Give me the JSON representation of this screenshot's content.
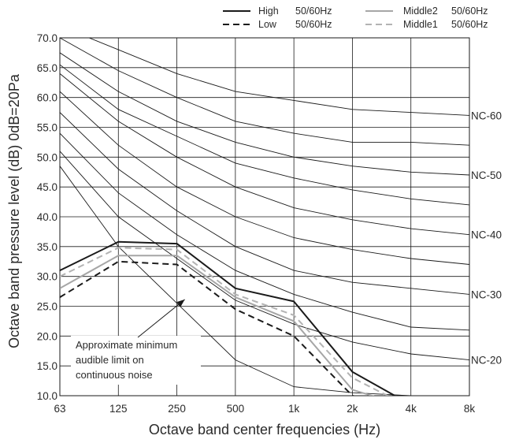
{
  "chart_data": {
    "type": "line",
    "xlabel": "Octave band center frequencies (Hz)",
    "ylabel": "Octave band pressure level (dB) 0dB=20Pa",
    "ylim": [
      10,
      70
    ],
    "grid": true,
    "legend_position": "top",
    "categories": [
      "63",
      "125",
      "250",
      "500",
      "1k",
      "2k",
      "4k",
      "8k"
    ],
    "y_ticks": [
      "10.0",
      "15.0",
      "20.0",
      "25.0",
      "30.0",
      "35.0",
      "40.0",
      "45.0",
      "50.0",
      "55.0",
      "60.0",
      "65.0",
      "70.0"
    ],
    "series": [
      {
        "name": "High",
        "hz_label": "50/60Hz",
        "color": "#1a1a1a",
        "dash": "solid",
        "values": [
          31,
          35.8,
          35.5,
          28,
          25.8,
          14,
          8.5,
          null
        ]
      },
      {
        "name": "Low",
        "hz_label": "50/60Hz",
        "color": "#1a1a1a",
        "dash": "dashed",
        "values": [
          26.5,
          32.5,
          32,
          24.5,
          20,
          10,
          8,
          null
        ]
      },
      {
        "name": "Middle2",
        "hz_label": "50/60Hz",
        "color": "#a6a6a6",
        "dash": "solid",
        "values": [
          28,
          33.5,
          33.5,
          26.5,
          22.5,
          11,
          8,
          null
        ]
      },
      {
        "name": "Middle1",
        "hz_label": "50/60Hz",
        "color": "#b3b3b3",
        "dash": "dashed",
        "values": [
          30,
          34.8,
          34.5,
          27,
          23.5,
          13,
          8,
          null
        ]
      }
    ],
    "nc_curves": [
      {
        "label": "",
        "values": [
          48.5,
          35,
          25.5,
          16,
          11.5,
          10.5,
          10,
          9.5
        ]
      },
      {
        "label": "NC-20",
        "values": [
          51,
          40,
          33,
          26,
          22,
          19,
          17,
          16
        ]
      },
      {
        "label": "",
        "values": [
          54,
          44,
          37,
          31,
          27,
          24,
          21.5,
          21
        ]
      },
      {
        "label": "NC-30",
        "values": [
          57.5,
          48,
          41,
          35,
          31,
          29,
          28,
          27
        ]
      },
      {
        "label": "",
        "values": [
          61,
          52,
          45,
          40,
          36.5,
          34.5,
          33,
          32
        ]
      },
      {
        "label": "NC-40",
        "values": [
          64,
          56,
          50,
          45,
          41.5,
          39.5,
          38,
          37
        ]
      },
      {
        "label": "",
        "values": [
          65.5,
          58,
          53.5,
          49,
          46.5,
          44.5,
          43,
          42
        ]
      },
      {
        "label": "NC-50",
        "values": [
          67.5,
          61,
          56,
          52.5,
          50,
          48.5,
          47.5,
          47
        ]
      },
      {
        "label": "",
        "values": [
          70,
          64.5,
          60,
          56,
          54,
          52.5,
          52.5,
          52
        ]
      },
      {
        "label": "NC-60",
        "values": [
          72,
          68,
          64,
          61,
          59.5,
          58,
          57.5,
          57
        ]
      }
    ],
    "annotation": {
      "lines": [
        "Approximate minimum",
        "audible limit on",
        "continuous noise"
      ],
      "arrow_target": {
        "x": "250",
        "y": 26
      }
    }
  }
}
